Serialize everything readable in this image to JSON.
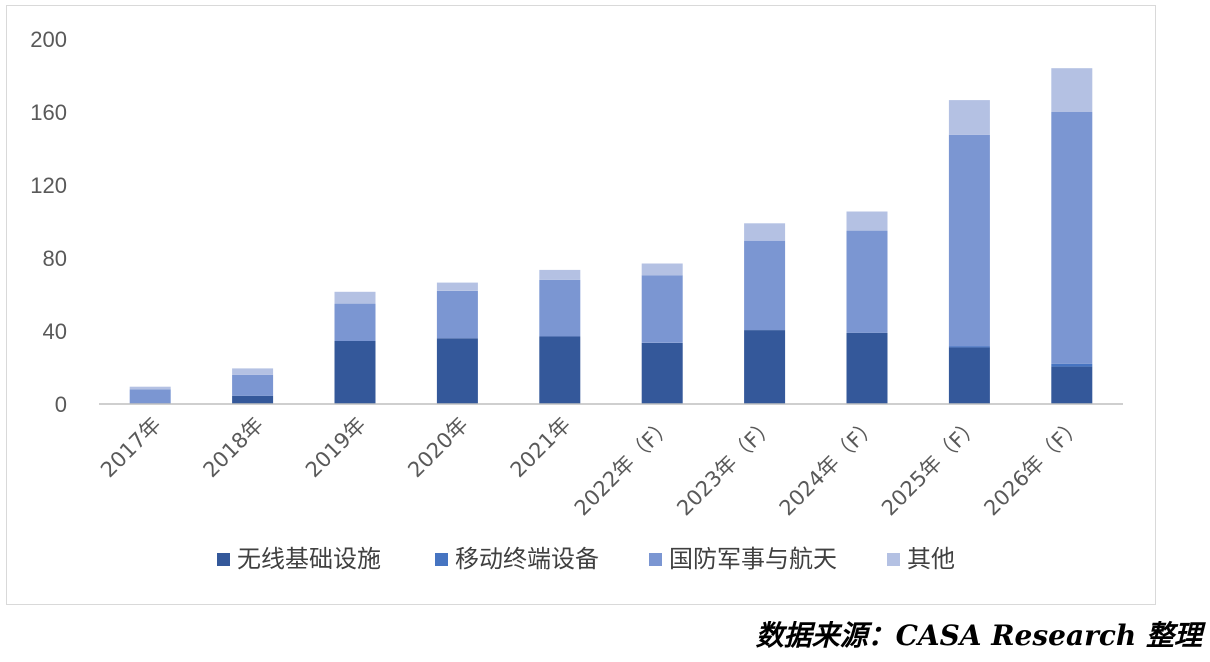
{
  "chart_data": {
    "type": "bar",
    "stacked": true,
    "categories": [
      "2017年",
      "2018年",
      "2019年",
      "2020年",
      "2021年",
      "2022年（F）",
      "2023年（F）",
      "2024年（F）",
      "2025年（F）",
      "2026年（F）"
    ],
    "series": [
      {
        "name": "无线基础设施",
        "color": "#34589a",
        "values": [
          0,
          4.5,
          34.5,
          36,
          37,
          33.5,
          40.5,
          39,
          31,
          20.5
        ]
      },
      {
        "name": "移动终端设备",
        "color": "#4674c1",
        "values": [
          0,
          0,
          0,
          0,
          0,
          0,
          0,
          0,
          0.5,
          1.5
        ]
      },
      {
        "name": "国防军事与航天",
        "color": "#7b96d2",
        "values": [
          8,
          11.5,
          20.5,
          26,
          31,
          37,
          49,
          56,
          116,
          138
        ]
      },
      {
        "name": "其他",
        "color": "#b4c1e3",
        "values": [
          1.5,
          3.5,
          6.5,
          4.5,
          5.5,
          6.5,
          9.5,
          10.5,
          19,
          24
        ]
      }
    ],
    "ylim": [
      0,
      200
    ],
    "yticks": [
      0,
      40,
      80,
      120,
      160,
      200
    ],
    "grid": false,
    "legend": "bottom"
  },
  "source_note": "数据来源：CASA Research 整理"
}
